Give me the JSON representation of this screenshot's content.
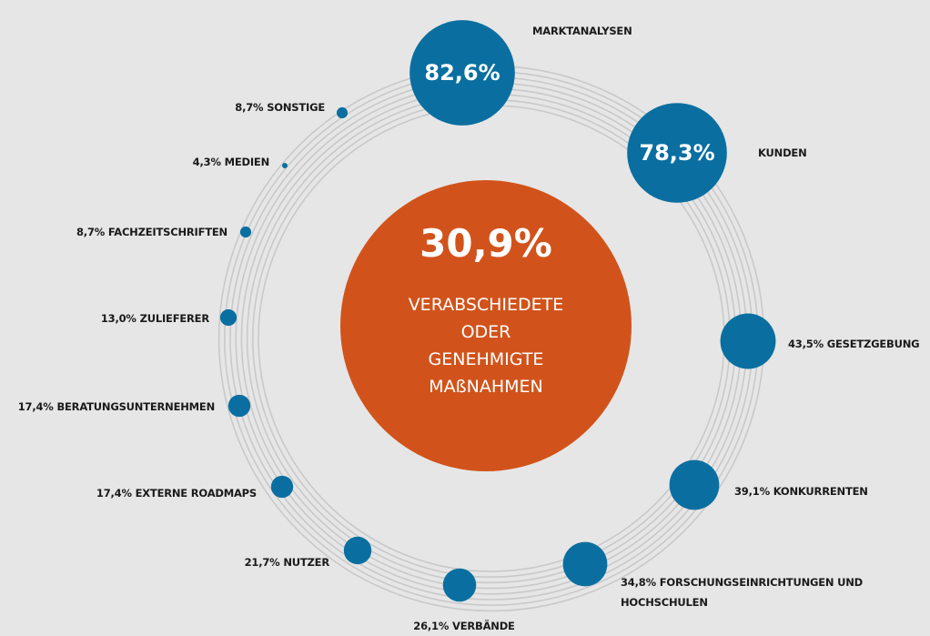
{
  "chart_data": {
    "type": "radial-bubble",
    "center": {
      "value": 30.9,
      "value_label": "30,9%",
      "label_lines": [
        "VERABSCHIEDETE",
        "ODER",
        "GENEHMIGTE",
        "MAßNAHMEN"
      ],
      "color": "#d1531b"
    },
    "color": "#0a6fa0",
    "categories": [
      "MARKTANALYSEN",
      "KUNDEN",
      "GESETZGEBUNG",
      "KONKURRENTEN",
      "FORSCHUNGSEINRICHTUNGEN UND HOCHSCHULEN",
      "VERBÄNDE",
      "NUTZER",
      "EXTERNE ROADMAPS",
      "BERATUNGSUNTERNEHMEN",
      "ZULIEFERER",
      "FACHZEITSCHRIFTEN",
      "MEDIEN",
      "SONSTIGE"
    ],
    "values": [
      82.6,
      78.3,
      43.5,
      39.1,
      34.8,
      26.1,
      21.7,
      17.4,
      17.4,
      13.0,
      8.7,
      4.3,
      8.7
    ],
    "value_labels": [
      "82,6%",
      "78,3%",
      "43,5%",
      "39,1%",
      "34,8%",
      "26,1%",
      "21,7%",
      "17,4%",
      "17,4%",
      "13,0%",
      "8,7%",
      "4,3%",
      "8,7%"
    ]
  }
}
